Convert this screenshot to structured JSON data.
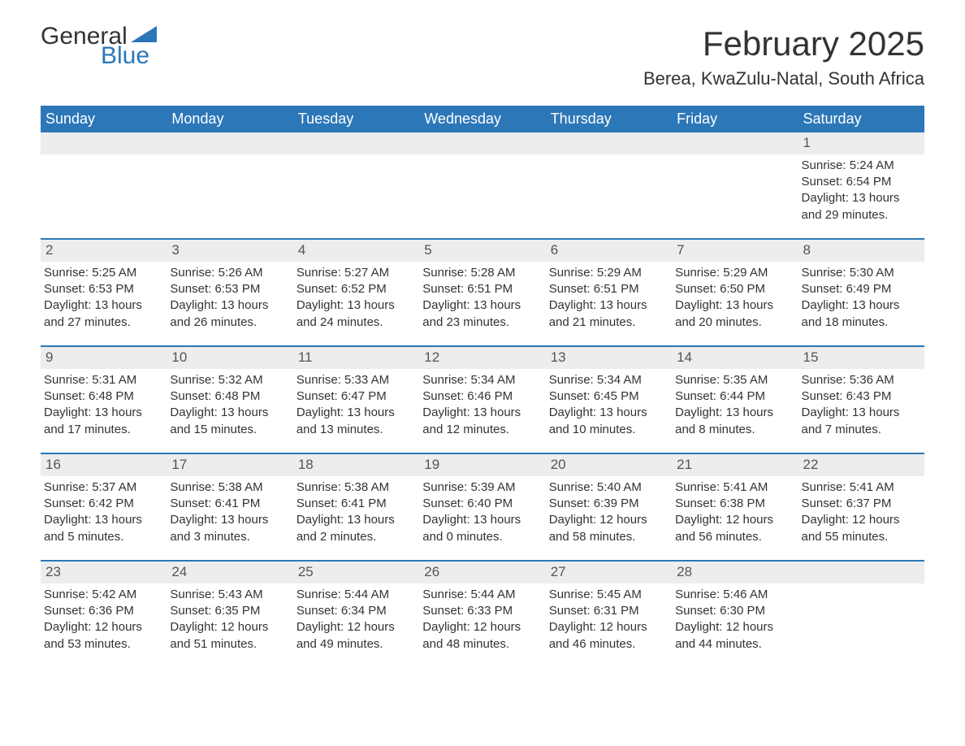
{
  "logo": {
    "part1": "General",
    "part2": "Blue"
  },
  "title": "February 2025",
  "location": "Berea, KwaZulu-Natal, South Africa",
  "colors": {
    "header_bg": "#2c77b8",
    "header_text": "#ffffff",
    "row_sep": "#2c77b8",
    "daynum_bg": "#ededed",
    "text": "#333333",
    "logo_blue": "#2c77b8"
  },
  "weekdays": [
    "Sunday",
    "Monday",
    "Tuesday",
    "Wednesday",
    "Thursday",
    "Friday",
    "Saturday"
  ],
  "weeks": [
    [
      {
        "day": "",
        "sunrise": "",
        "sunset": "",
        "daylight1": "",
        "daylight2": ""
      },
      {
        "day": "",
        "sunrise": "",
        "sunset": "",
        "daylight1": "",
        "daylight2": ""
      },
      {
        "day": "",
        "sunrise": "",
        "sunset": "",
        "daylight1": "",
        "daylight2": ""
      },
      {
        "day": "",
        "sunrise": "",
        "sunset": "",
        "daylight1": "",
        "daylight2": ""
      },
      {
        "day": "",
        "sunrise": "",
        "sunset": "",
        "daylight1": "",
        "daylight2": ""
      },
      {
        "day": "",
        "sunrise": "",
        "sunset": "",
        "daylight1": "",
        "daylight2": ""
      },
      {
        "day": "1",
        "sunrise": "Sunrise: 5:24 AM",
        "sunset": "Sunset: 6:54 PM",
        "daylight1": "Daylight: 13 hours",
        "daylight2": "and 29 minutes."
      }
    ],
    [
      {
        "day": "2",
        "sunrise": "Sunrise: 5:25 AM",
        "sunset": "Sunset: 6:53 PM",
        "daylight1": "Daylight: 13 hours",
        "daylight2": "and 27 minutes."
      },
      {
        "day": "3",
        "sunrise": "Sunrise: 5:26 AM",
        "sunset": "Sunset: 6:53 PM",
        "daylight1": "Daylight: 13 hours",
        "daylight2": "and 26 minutes."
      },
      {
        "day": "4",
        "sunrise": "Sunrise: 5:27 AM",
        "sunset": "Sunset: 6:52 PM",
        "daylight1": "Daylight: 13 hours",
        "daylight2": "and 24 minutes."
      },
      {
        "day": "5",
        "sunrise": "Sunrise: 5:28 AM",
        "sunset": "Sunset: 6:51 PM",
        "daylight1": "Daylight: 13 hours",
        "daylight2": "and 23 minutes."
      },
      {
        "day": "6",
        "sunrise": "Sunrise: 5:29 AM",
        "sunset": "Sunset: 6:51 PM",
        "daylight1": "Daylight: 13 hours",
        "daylight2": "and 21 minutes."
      },
      {
        "day": "7",
        "sunrise": "Sunrise: 5:29 AM",
        "sunset": "Sunset: 6:50 PM",
        "daylight1": "Daylight: 13 hours",
        "daylight2": "and 20 minutes."
      },
      {
        "day": "8",
        "sunrise": "Sunrise: 5:30 AM",
        "sunset": "Sunset: 6:49 PM",
        "daylight1": "Daylight: 13 hours",
        "daylight2": "and 18 minutes."
      }
    ],
    [
      {
        "day": "9",
        "sunrise": "Sunrise: 5:31 AM",
        "sunset": "Sunset: 6:48 PM",
        "daylight1": "Daylight: 13 hours",
        "daylight2": "and 17 minutes."
      },
      {
        "day": "10",
        "sunrise": "Sunrise: 5:32 AM",
        "sunset": "Sunset: 6:48 PM",
        "daylight1": "Daylight: 13 hours",
        "daylight2": "and 15 minutes."
      },
      {
        "day": "11",
        "sunrise": "Sunrise: 5:33 AM",
        "sunset": "Sunset: 6:47 PM",
        "daylight1": "Daylight: 13 hours",
        "daylight2": "and 13 minutes."
      },
      {
        "day": "12",
        "sunrise": "Sunrise: 5:34 AM",
        "sunset": "Sunset: 6:46 PM",
        "daylight1": "Daylight: 13 hours",
        "daylight2": "and 12 minutes."
      },
      {
        "day": "13",
        "sunrise": "Sunrise: 5:34 AM",
        "sunset": "Sunset: 6:45 PM",
        "daylight1": "Daylight: 13 hours",
        "daylight2": "and 10 minutes."
      },
      {
        "day": "14",
        "sunrise": "Sunrise: 5:35 AM",
        "sunset": "Sunset: 6:44 PM",
        "daylight1": "Daylight: 13 hours",
        "daylight2": "and 8 minutes."
      },
      {
        "day": "15",
        "sunrise": "Sunrise: 5:36 AM",
        "sunset": "Sunset: 6:43 PM",
        "daylight1": "Daylight: 13 hours",
        "daylight2": "and 7 minutes."
      }
    ],
    [
      {
        "day": "16",
        "sunrise": "Sunrise: 5:37 AM",
        "sunset": "Sunset: 6:42 PM",
        "daylight1": "Daylight: 13 hours",
        "daylight2": "and 5 minutes."
      },
      {
        "day": "17",
        "sunrise": "Sunrise: 5:38 AM",
        "sunset": "Sunset: 6:41 PM",
        "daylight1": "Daylight: 13 hours",
        "daylight2": "and 3 minutes."
      },
      {
        "day": "18",
        "sunrise": "Sunrise: 5:38 AM",
        "sunset": "Sunset: 6:41 PM",
        "daylight1": "Daylight: 13 hours",
        "daylight2": "and 2 minutes."
      },
      {
        "day": "19",
        "sunrise": "Sunrise: 5:39 AM",
        "sunset": "Sunset: 6:40 PM",
        "daylight1": "Daylight: 13 hours",
        "daylight2": "and 0 minutes."
      },
      {
        "day": "20",
        "sunrise": "Sunrise: 5:40 AM",
        "sunset": "Sunset: 6:39 PM",
        "daylight1": "Daylight: 12 hours",
        "daylight2": "and 58 minutes."
      },
      {
        "day": "21",
        "sunrise": "Sunrise: 5:41 AM",
        "sunset": "Sunset: 6:38 PM",
        "daylight1": "Daylight: 12 hours",
        "daylight2": "and 56 minutes."
      },
      {
        "day": "22",
        "sunrise": "Sunrise: 5:41 AM",
        "sunset": "Sunset: 6:37 PM",
        "daylight1": "Daylight: 12 hours",
        "daylight2": "and 55 minutes."
      }
    ],
    [
      {
        "day": "23",
        "sunrise": "Sunrise: 5:42 AM",
        "sunset": "Sunset: 6:36 PM",
        "daylight1": "Daylight: 12 hours",
        "daylight2": "and 53 minutes."
      },
      {
        "day": "24",
        "sunrise": "Sunrise: 5:43 AM",
        "sunset": "Sunset: 6:35 PM",
        "daylight1": "Daylight: 12 hours",
        "daylight2": "and 51 minutes."
      },
      {
        "day": "25",
        "sunrise": "Sunrise: 5:44 AM",
        "sunset": "Sunset: 6:34 PM",
        "daylight1": "Daylight: 12 hours",
        "daylight2": "and 49 minutes."
      },
      {
        "day": "26",
        "sunrise": "Sunrise: 5:44 AM",
        "sunset": "Sunset: 6:33 PM",
        "daylight1": "Daylight: 12 hours",
        "daylight2": "and 48 minutes."
      },
      {
        "day": "27",
        "sunrise": "Sunrise: 5:45 AM",
        "sunset": "Sunset: 6:31 PM",
        "daylight1": "Daylight: 12 hours",
        "daylight2": "and 46 minutes."
      },
      {
        "day": "28",
        "sunrise": "Sunrise: 5:46 AM",
        "sunset": "Sunset: 6:30 PM",
        "daylight1": "Daylight: 12 hours",
        "daylight2": "and 44 minutes."
      },
      {
        "day": "",
        "sunrise": "",
        "sunset": "",
        "daylight1": "",
        "daylight2": ""
      }
    ]
  ]
}
